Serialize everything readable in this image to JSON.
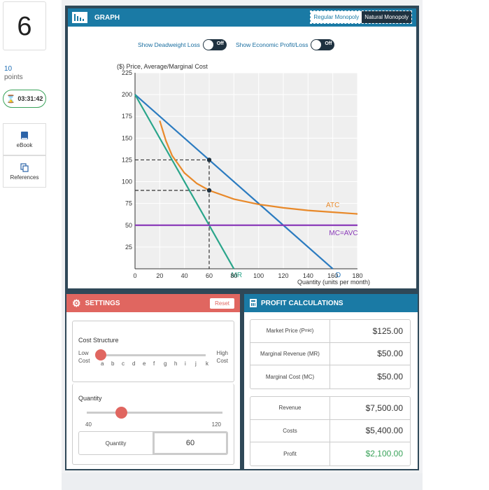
{
  "question": {
    "number": "6",
    "points_value": "10",
    "points_label": "points",
    "timer": "03:31:42"
  },
  "side_buttons": [
    {
      "label": "eBook",
      "icon": "book-icon"
    },
    {
      "label": "References",
      "icon": "copy-icon"
    }
  ],
  "graph": {
    "title": "GRAPH",
    "toggle": {
      "regular": "Regular Monopoly",
      "natural": "Natural Monopoly",
      "active": "natural"
    },
    "deadweight": {
      "label": "Show Deadweight Loss",
      "state": "Off"
    },
    "profit_loss": {
      "label": "Show Economic Profit/Loss",
      "state": "Off"
    }
  },
  "chart_data": {
    "type": "line",
    "ylabel": "($) Price, Average/Marginal Cost",
    "xlabel": "Quantity (units per month)",
    "xlim": [
      0,
      180
    ],
    "ylim": [
      0,
      225
    ],
    "xticks": [
      0,
      20,
      40,
      60,
      80,
      100,
      120,
      140,
      160,
      180
    ],
    "yticks": [
      25,
      50,
      75,
      100,
      125,
      150,
      175,
      200,
      225
    ],
    "series": [
      {
        "name": "D",
        "color": "#2b7bc0",
        "points": [
          [
            0,
            200
          ],
          [
            160,
            0
          ]
        ]
      },
      {
        "name": "MR",
        "color": "#2aa58a",
        "points": [
          [
            0,
            200
          ],
          [
            80,
            0
          ]
        ]
      },
      {
        "name": "ATC",
        "color": "#e8892a",
        "points": [
          [
            20,
            170
          ],
          [
            25,
            147
          ],
          [
            30,
            130
          ],
          [
            40,
            110
          ],
          [
            50,
            98
          ],
          [
            60,
            90
          ],
          [
            80,
            80
          ],
          [
            100,
            74
          ],
          [
            120,
            70
          ],
          [
            140,
            67
          ],
          [
            160,
            65
          ],
          [
            180,
            63
          ]
        ]
      },
      {
        "name": "MC=AVC",
        "color": "#8a3ab9",
        "points": [
          [
            0,
            50
          ],
          [
            180,
            50
          ]
        ]
      }
    ],
    "markers": [
      {
        "x": 60,
        "y": 125
      },
      {
        "x": 60,
        "y": 90
      }
    ],
    "guides": [
      {
        "x": 60,
        "y": 125
      },
      {
        "x": 60,
        "y": 90
      }
    ],
    "grid": true
  },
  "settings": {
    "title": "SETTINGS",
    "reset": "Reset",
    "cost_structure": {
      "label": "Cost Structure",
      "low": "Low\nCost",
      "high": "High\nCost",
      "ticks": [
        "a",
        "b",
        "c",
        "d",
        "e",
        "f",
        "g",
        "h",
        "i",
        "j",
        "k"
      ],
      "selected_index": 0
    },
    "quantity": {
      "label": "Quantity",
      "min": "40",
      "max": "120",
      "value_fraction": 0.25,
      "field_label": "Quantity",
      "field_value": "60"
    }
  },
  "profit": {
    "title": "PROFIT CALCULATIONS",
    "rows1": [
      {
        "label": "Market Price (Pmkt)",
        "value": "$125.00"
      },
      {
        "label": "Marginal Revenue (MR)",
        "value": "$50.00"
      },
      {
        "label": "Marginal Cost (MC)",
        "value": "$50.00"
      }
    ],
    "rows2": [
      {
        "label": "Revenue",
        "value": "$7,500.00"
      },
      {
        "label": "Costs",
        "value": "$5,400.00"
      },
      {
        "label": "Profit",
        "value": "$2,100.00",
        "color": "#3aa35a"
      }
    ]
  }
}
